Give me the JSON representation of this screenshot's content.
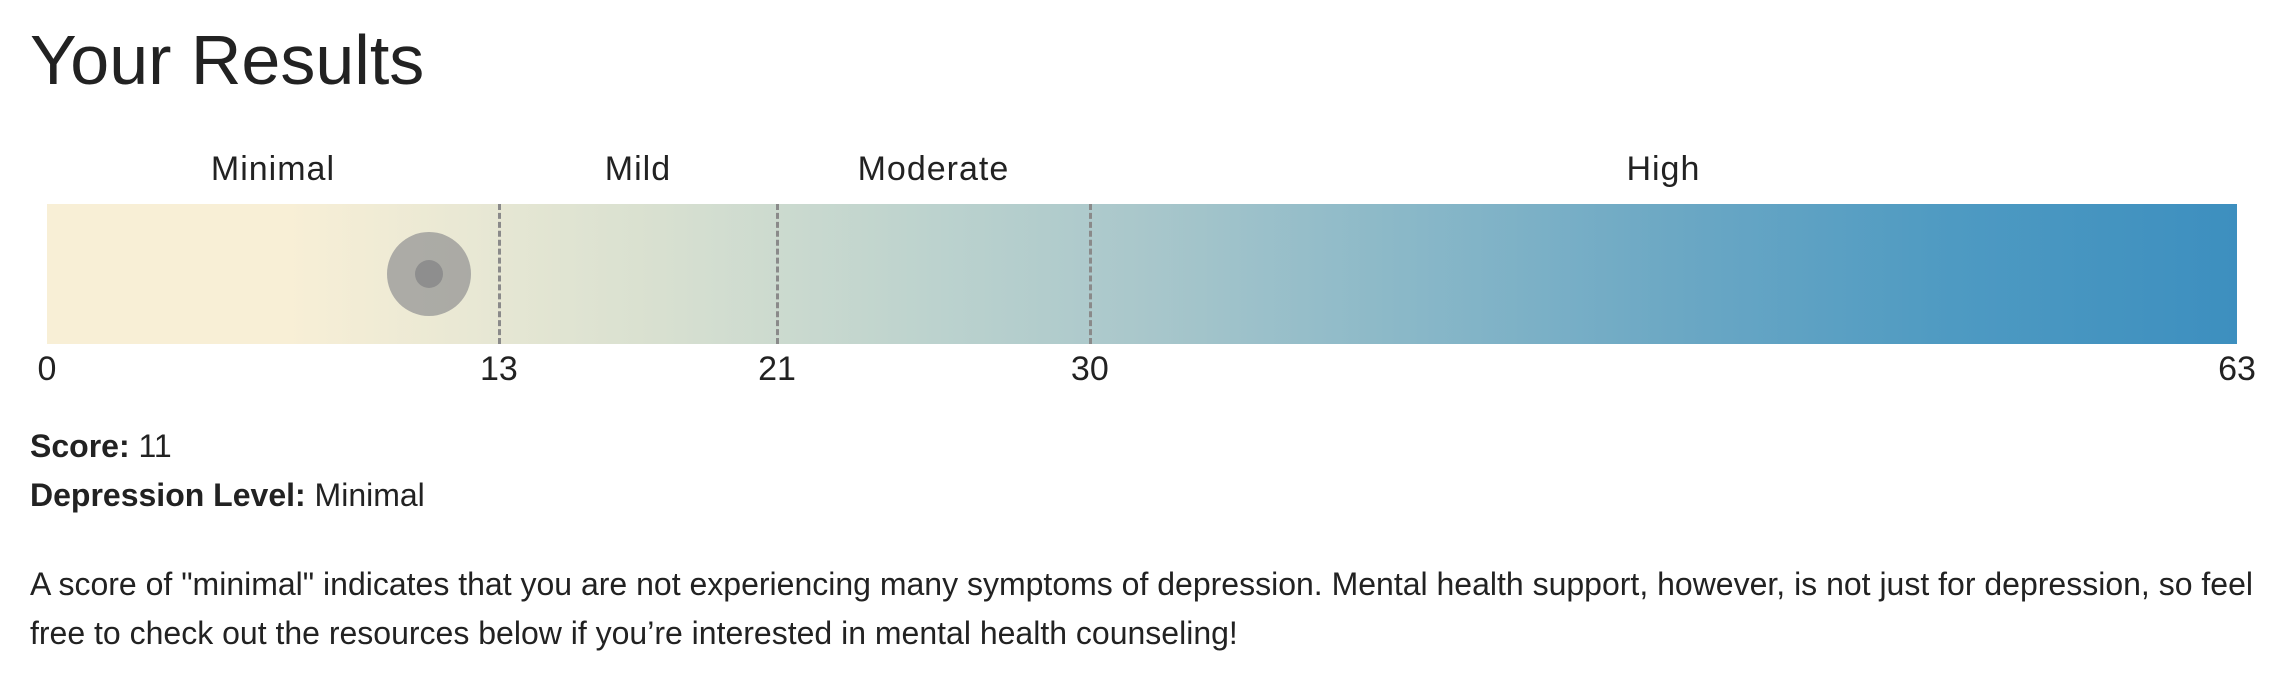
{
  "page_title": "Your Results",
  "scale": {
    "min": 0,
    "max": 63,
    "ranges": [
      {
        "label": "Minimal",
        "from": 0,
        "to": 13
      },
      {
        "label": "Mild",
        "from": 13,
        "to": 21
      },
      {
        "label": "Moderate",
        "from": 21,
        "to": 30
      },
      {
        "label": "High",
        "from": 30,
        "to": 63
      }
    ],
    "ticks": [
      "0",
      "13",
      "21",
      "30",
      "63"
    ],
    "marker_value": 11,
    "gradient_start_color": "#f8efd6",
    "gradient_end_color": "#3d8fbf"
  },
  "score": {
    "label": "Score:",
    "value": "11"
  },
  "depression_level": {
    "label": "Depression Level:",
    "value": "Minimal"
  },
  "description": "A score of \"minimal\" indicates that you are not experiencing many symptoms of depression. Mental health support, however, is not just for depression, so feel free to check out the resources below if you’re interested in mental health counseling!"
}
